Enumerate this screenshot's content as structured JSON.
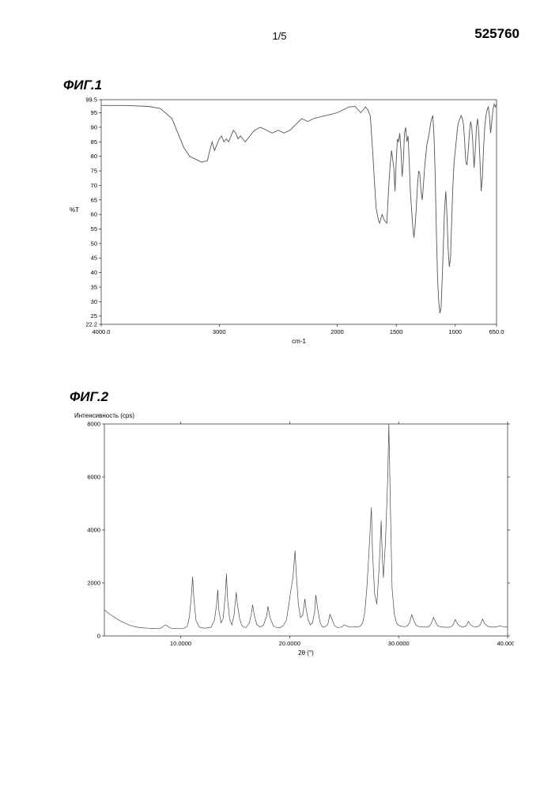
{
  "doc_id": "525760",
  "page_number": "1/5",
  "fig1": {
    "label": "ФИГ.1",
    "type": "line",
    "x_axis": {
      "title": "cm-1",
      "min": 650.0,
      "max": 4000.0,
      "ticks": [
        4000.0,
        3000,
        2000,
        1500,
        1000,
        650.0
      ],
      "tick_labels": [
        "4000.0",
        "3000",
        "2000",
        "1500",
        "1000",
        "650.0"
      ],
      "reversed": true
    },
    "y_axis": {
      "title": "%T",
      "min": 22.2,
      "max": 99.5,
      "ticks": [
        22.2,
        25,
        30,
        35,
        40,
        45,
        50,
        55,
        60,
        65,
        70,
        75,
        80,
        85,
        90,
        95,
        99.5
      ],
      "tick_labels": [
        "22.2",
        "25",
        "30",
        "35",
        "40",
        "45",
        "50",
        "55",
        "60",
        "65",
        "70",
        "75",
        "80",
        "85",
        "90",
        "95",
        "99.5"
      ]
    },
    "line_color": "#555555",
    "line_width": 0.9,
    "background_color": "#ffffff",
    "series": [
      [
        4000,
        97.5
      ],
      [
        3800,
        97.5
      ],
      [
        3600,
        97.2
      ],
      [
        3500,
        96.5
      ],
      [
        3400,
        93
      ],
      [
        3350,
        88
      ],
      [
        3300,
        83
      ],
      [
        3250,
        80
      ],
      [
        3200,
        79
      ],
      [
        3150,
        78
      ],
      [
        3100,
        78.5
      ],
      [
        3080,
        82
      ],
      [
        3060,
        85
      ],
      [
        3040,
        82
      ],
      [
        3020,
        84
      ],
      [
        3000,
        86
      ],
      [
        2980,
        87
      ],
      [
        2960,
        85
      ],
      [
        2940,
        86
      ],
      [
        2920,
        85
      ],
      [
        2900,
        87
      ],
      [
        2880,
        89
      ],
      [
        2860,
        88
      ],
      [
        2840,
        86
      ],
      [
        2820,
        87
      ],
      [
        2800,
        86
      ],
      [
        2780,
        85
      ],
      [
        2760,
        86
      ],
      [
        2740,
        87
      ],
      [
        2720,
        88
      ],
      [
        2700,
        89
      ],
      [
        2650,
        90
      ],
      [
        2600,
        89
      ],
      [
        2550,
        88
      ],
      [
        2500,
        89
      ],
      [
        2450,
        88
      ],
      [
        2400,
        89
      ],
      [
        2350,
        91
      ],
      [
        2300,
        93
      ],
      [
        2250,
        92
      ],
      [
        2200,
        93
      ],
      [
        2150,
        93.5
      ],
      [
        2100,
        94
      ],
      [
        2050,
        94.5
      ],
      [
        2000,
        95
      ],
      [
        1950,
        96
      ],
      [
        1900,
        97
      ],
      [
        1850,
        97.2
      ],
      [
        1800,
        95
      ],
      [
        1780,
        96
      ],
      [
        1760,
        97
      ],
      [
        1740,
        96
      ],
      [
        1720,
        94
      ],
      [
        1700,
        82
      ],
      [
        1680,
        68
      ],
      [
        1670,
        62
      ],
      [
        1650,
        58
      ],
      [
        1640,
        57
      ],
      [
        1620,
        60
      ],
      [
        1600,
        58
      ],
      [
        1580,
        57
      ],
      [
        1560,
        72
      ],
      [
        1550,
        78
      ],
      [
        1540,
        82
      ],
      [
        1520,
        76
      ],
      [
        1510,
        68
      ],
      [
        1500,
        78
      ],
      [
        1490,
        86
      ],
      [
        1480,
        85
      ],
      [
        1470,
        88
      ],
      [
        1460,
        82
      ],
      [
        1450,
        73
      ],
      [
        1440,
        78
      ],
      [
        1430,
        88
      ],
      [
        1420,
        90
      ],
      [
        1410,
        85
      ],
      [
        1400,
        87
      ],
      [
        1390,
        78
      ],
      [
        1380,
        68
      ],
      [
        1370,
        62
      ],
      [
        1360,
        56
      ],
      [
        1350,
        52
      ],
      [
        1340,
        56
      ],
      [
        1330,
        62
      ],
      [
        1320,
        70
      ],
      [
        1310,
        75
      ],
      [
        1300,
        74
      ],
      [
        1290,
        68
      ],
      [
        1280,
        65
      ],
      [
        1270,
        70
      ],
      [
        1260,
        76
      ],
      [
        1250,
        80
      ],
      [
        1240,
        84
      ],
      [
        1230,
        86
      ],
      [
        1220,
        88
      ],
      [
        1210,
        91
      ],
      [
        1200,
        93
      ],
      [
        1190,
        94
      ],
      [
        1180,
        87
      ],
      [
        1170,
        74
      ],
      [
        1160,
        54
      ],
      [
        1150,
        38
      ],
      [
        1140,
        30
      ],
      [
        1130,
        26
      ],
      [
        1120,
        28
      ],
      [
        1110,
        38
      ],
      [
        1100,
        50
      ],
      [
        1090,
        62
      ],
      [
        1080,
        68
      ],
      [
        1070,
        60
      ],
      [
        1060,
        48
      ],
      [
        1050,
        42
      ],
      [
        1040,
        45
      ],
      [
        1030,
        58
      ],
      [
        1020,
        70
      ],
      [
        1010,
        78
      ],
      [
        1000,
        82
      ],
      [
        990,
        86
      ],
      [
        980,
        90
      ],
      [
        970,
        92
      ],
      [
        960,
        93
      ],
      [
        950,
        94
      ],
      [
        940,
        93
      ],
      [
        930,
        91
      ],
      [
        920,
        85
      ],
      [
        910,
        78
      ],
      [
        900,
        77
      ],
      [
        890,
        82
      ],
      [
        880,
        88
      ],
      [
        870,
        92
      ],
      [
        860,
        90
      ],
      [
        850,
        84
      ],
      [
        840,
        76
      ],
      [
        830,
        82
      ],
      [
        820,
        90
      ],
      [
        810,
        93
      ],
      [
        800,
        88
      ],
      [
        790,
        78
      ],
      [
        780,
        68
      ],
      [
        770,
        73
      ],
      [
        760,
        83
      ],
      [
        750,
        90
      ],
      [
        740,
        94
      ],
      [
        730,
        96
      ],
      [
        720,
        97
      ],
      [
        710,
        94
      ],
      [
        700,
        88
      ],
      [
        690,
        92
      ],
      [
        680,
        96
      ],
      [
        670,
        98
      ],
      [
        660,
        97
      ],
      [
        650,
        98
      ]
    ]
  },
  "fig2": {
    "label": "ФИГ.2",
    "type": "line",
    "x_axis": {
      "title": "2θ (°)",
      "min": 3.0,
      "max": 40.0,
      "ticks": [
        10.0,
        20.0,
        30.0,
        40.0
      ],
      "tick_labels": [
        "10.0000",
        "20.0000",
        "30.0000",
        "40.0000"
      ]
    },
    "y_axis": {
      "title": "Интенсивность (cps)",
      "min": 0,
      "max": 8000,
      "ticks": [
        0,
        2000,
        4000,
        6000,
        8000
      ],
      "tick_labels": [
        "0",
        "2000",
        "4000",
        "6000",
        "8000"
      ]
    },
    "line_color": "#3a3a3a",
    "line_width": 0.7,
    "background_color": "#ffffff",
    "series": [
      [
        3.0,
        980
      ],
      [
        3.5,
        820
      ],
      [
        4.0,
        680
      ],
      [
        4.5,
        560
      ],
      [
        5.0,
        460
      ],
      [
        5.5,
        380
      ],
      [
        6.0,
        330
      ],
      [
        6.5,
        310
      ],
      [
        7.0,
        290
      ],
      [
        7.5,
        280
      ],
      [
        8.0,
        275
      ],
      [
        8.2,
        300
      ],
      [
        8.4,
        360
      ],
      [
        8.6,
        420
      ],
      [
        8.8,
        370
      ],
      [
        9.0,
        310
      ],
      [
        9.2,
        290
      ],
      [
        9.5,
        280
      ],
      [
        10.0,
        275
      ],
      [
        10.3,
        290
      ],
      [
        10.6,
        360
      ],
      [
        10.8,
        700
      ],
      [
        11.0,
        1600
      ],
      [
        11.1,
        2240
      ],
      [
        11.2,
        1500
      ],
      [
        11.4,
        600
      ],
      [
        11.7,
        340
      ],
      [
        12.0,
        300
      ],
      [
        12.3,
        295
      ],
      [
        12.8,
        330
      ],
      [
        13.1,
        600
      ],
      [
        13.3,
        1200
      ],
      [
        13.4,
        1750
      ],
      [
        13.5,
        1000
      ],
      [
        13.7,
        500
      ],
      [
        13.9,
        650
      ],
      [
        14.1,
        1550
      ],
      [
        14.2,
        2350
      ],
      [
        14.3,
        1400
      ],
      [
        14.5,
        620
      ],
      [
        14.7,
        420
      ],
      [
        14.9,
        780
      ],
      [
        15.1,
        1650
      ],
      [
        15.2,
        1200
      ],
      [
        15.4,
        680
      ],
      [
        15.6,
        400
      ],
      [
        15.8,
        330
      ],
      [
        16.0,
        320
      ],
      [
        16.3,
        480
      ],
      [
        16.5,
        850
      ],
      [
        16.6,
        1180
      ],
      [
        16.8,
        700
      ],
      [
        17.0,
        420
      ],
      [
        17.3,
        340
      ],
      [
        17.6,
        400
      ],
      [
        17.9,
        760
      ],
      [
        18.0,
        1120
      ],
      [
        18.2,
        700
      ],
      [
        18.5,
        380
      ],
      [
        18.8,
        320
      ],
      [
        19.1,
        310
      ],
      [
        19.4,
        380
      ],
      [
        19.7,
        600
      ],
      [
        19.9,
        1100
      ],
      [
        20.1,
        1700
      ],
      [
        20.3,
        2200
      ],
      [
        20.5,
        3220
      ],
      [
        20.6,
        2400
      ],
      [
        20.8,
        1200
      ],
      [
        21.0,
        700
      ],
      [
        21.2,
        780
      ],
      [
        21.4,
        1400
      ],
      [
        21.5,
        1050
      ],
      [
        21.7,
        600
      ],
      [
        21.9,
        420
      ],
      [
        22.1,
        500
      ],
      [
        22.3,
        920
      ],
      [
        22.4,
        1550
      ],
      [
        22.6,
        950
      ],
      [
        22.8,
        500
      ],
      [
        23.0,
        350
      ],
      [
        23.2,
        330
      ],
      [
        23.5,
        430
      ],
      [
        23.7,
        820
      ],
      [
        23.9,
        620
      ],
      [
        24.1,
        400
      ],
      [
        24.3,
        330
      ],
      [
        24.5,
        320
      ],
      [
        24.8,
        340
      ],
      [
        25.0,
        420
      ],
      [
        25.2,
        380
      ],
      [
        25.5,
        340
      ],
      [
        25.8,
        335
      ],
      [
        26.0,
        345
      ],
      [
        26.3,
        350
      ],
      [
        26.5,
        380
      ],
      [
        26.7,
        500
      ],
      [
        26.9,
        900
      ],
      [
        27.1,
        1900
      ],
      [
        27.3,
        3300
      ],
      [
        27.5,
        4850
      ],
      [
        27.6,
        3200
      ],
      [
        27.8,
        1600
      ],
      [
        28.0,
        1200
      ],
      [
        28.2,
        2500
      ],
      [
        28.4,
        4350
      ],
      [
        28.5,
        3000
      ],
      [
        28.6,
        2200
      ],
      [
        28.8,
        3600
      ],
      [
        29.0,
        6000
      ],
      [
        29.1,
        8000
      ],
      [
        29.25,
        4800
      ],
      [
        29.4,
        1800
      ],
      [
        29.6,
        850
      ],
      [
        29.8,
        500
      ],
      [
        30.0,
        400
      ],
      [
        30.2,
        370
      ],
      [
        30.5,
        350
      ],
      [
        30.8,
        380
      ],
      [
        31.0,
        500
      ],
      [
        31.2,
        800
      ],
      [
        31.4,
        580
      ],
      [
        31.6,
        400
      ],
      [
        31.9,
        350
      ],
      [
        32.2,
        340
      ],
      [
        32.5,
        335
      ],
      [
        32.8,
        360
      ],
      [
        33.0,
        480
      ],
      [
        33.2,
        700
      ],
      [
        33.4,
        520
      ],
      [
        33.6,
        380
      ],
      [
        33.9,
        340
      ],
      [
        34.2,
        330
      ],
      [
        34.5,
        325
      ],
      [
        34.8,
        340
      ],
      [
        35.0,
        420
      ],
      [
        35.2,
        620
      ],
      [
        35.4,
        460
      ],
      [
        35.6,
        370
      ],
      [
        35.9,
        340
      ],
      [
        36.2,
        380
      ],
      [
        36.4,
        550
      ],
      [
        36.6,
        420
      ],
      [
        36.9,
        350
      ],
      [
        37.2,
        340
      ],
      [
        37.5,
        420
      ],
      [
        37.7,
        640
      ],
      [
        37.9,
        460
      ],
      [
        38.2,
        360
      ],
      [
        38.5,
        340
      ],
      [
        38.8,
        330
      ],
      [
        39.0,
        350
      ],
      [
        39.3,
        380
      ],
      [
        39.6,
        350
      ],
      [
        40.0,
        330
      ]
    ]
  }
}
